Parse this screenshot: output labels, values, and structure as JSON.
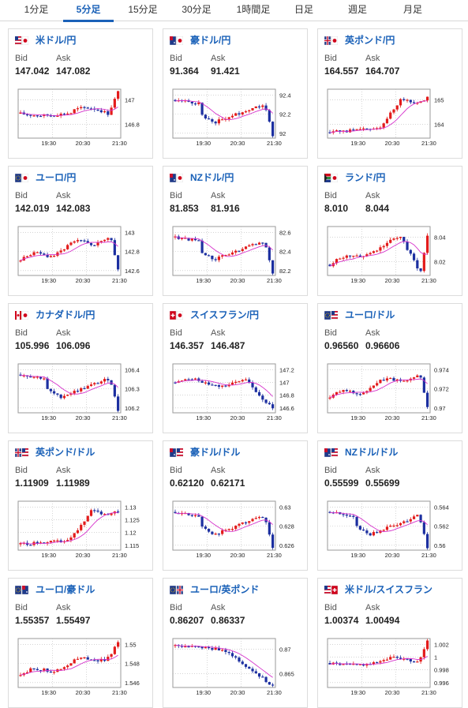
{
  "tabs": [
    {
      "label": "1分足",
      "active": false
    },
    {
      "label": "5分足",
      "active": true
    },
    {
      "label": "15分足",
      "active": false
    },
    {
      "label": "30分足",
      "active": false
    },
    {
      "label": "1時間足",
      "active": false
    },
    {
      "label": "日足",
      "active": false
    },
    {
      "label": "週足",
      "active": false
    },
    {
      "label": "月足",
      "active": false
    }
  ],
  "bid_label": "Bid",
  "ask_label": "Ask",
  "colors": {
    "accent": "#1a61b8",
    "up": "#e31b1b",
    "down": "#1c2fa0",
    "ma": "#d633cc"
  },
  "cards": [
    {
      "pair": "米ドル/円",
      "flag": "us-jp",
      "bid": "147.042",
      "ask": "147.082",
      "x_ticks": [
        "19:30",
        "20:30",
        "21:30"
      ],
      "y_ticks": [
        "147",
        "146.8"
      ],
      "trend": "flat-then-spike-up"
    },
    {
      "pair": "豪ドル/円",
      "flag": "au-jp",
      "bid": "91.364",
      "ask": "91.421",
      "x_ticks": [
        "19:30",
        "20:30",
        "21:30"
      ],
      "y_ticks": [
        "92.4",
        "92.2",
        "92"
      ],
      "trend": "dip-recover-drop"
    },
    {
      "pair": "英ポンド/円",
      "flag": "gb-jp",
      "bid": "164.557",
      "ask": "164.707",
      "x_ticks": [
        "19:30",
        "20:30",
        "21:30"
      ],
      "y_ticks": [
        "165",
        "164"
      ],
      "trend": "rising"
    },
    {
      "pair": "ユーロ/円",
      "flag": "eu-jp",
      "bid": "142.019",
      "ask": "142.083",
      "x_ticks": [
        "19:30",
        "20:30",
        "21:30"
      ],
      "y_ticks": [
        "143",
        "142.8",
        "142.6"
      ],
      "trend": "rise-then-drop"
    },
    {
      "pair": "NZドル/円",
      "flag": "nz-jp",
      "bid": "81.853",
      "ask": "81.916",
      "x_ticks": [
        "19:30",
        "20:30",
        "21:30"
      ],
      "y_ticks": [
        "82.6",
        "82.4",
        "82.2"
      ],
      "trend": "dip-recover-drop"
    },
    {
      "pair": "ランド/円",
      "flag": "za-jp",
      "bid": "8.010",
      "ask": "8.044",
      "x_ticks": [
        "19:30",
        "20:30",
        "21:30"
      ],
      "y_ticks": [
        "8.04",
        "8.02"
      ],
      "trend": "rise-dip-spike"
    },
    {
      "pair": "カナダドル/円",
      "flag": "ca-jp",
      "bid": "105.996",
      "ask": "106.096",
      "x_ticks": [
        "19:30",
        "20:30",
        "21:30"
      ],
      "y_ticks": [
        "106.4",
        "106.3",
        "106.2"
      ],
      "trend": "dip-recover-drop"
    },
    {
      "pair": "スイスフラン/円",
      "flag": "ch-jp",
      "bid": "146.357",
      "ask": "146.487",
      "x_ticks": [
        "19:30",
        "20:30",
        "21:30"
      ],
      "y_ticks": [
        "147.2",
        "147",
        "146.8",
        "146.6"
      ],
      "trend": "flat-then-drop"
    },
    {
      "pair": "ユーロ/ドル",
      "flag": "eu-us",
      "bid": "0.96560",
      "ask": "0.96606",
      "x_ticks": [
        "19:30",
        "20:30",
        "21:30"
      ],
      "y_ticks": [
        "0.974",
        "0.972",
        "0.97"
      ],
      "trend": "rise-then-drop"
    },
    {
      "pair": "英ポンド/ドル",
      "flag": "gb-us",
      "bid": "1.11909",
      "ask": "1.11989",
      "x_ticks": [
        "19:30",
        "20:30",
        "21:30"
      ],
      "y_ticks": [
        "1.13",
        "1.125",
        "1.12",
        "1.115"
      ],
      "trend": "rising"
    },
    {
      "pair": "豪ドル/ドル",
      "flag": "au-us",
      "bid": "0.62120",
      "ask": "0.62171",
      "x_ticks": [
        "19:30",
        "20:30",
        "21:30"
      ],
      "y_ticks": [
        "0.63",
        "0.628",
        "0.626"
      ],
      "trend": "dip-recover-drop"
    },
    {
      "pair": "NZドル/ドル",
      "flag": "nz-us",
      "bid": "0.55599",
      "ask": "0.55699",
      "x_ticks": [
        "19:30",
        "20:30",
        "21:30"
      ],
      "y_ticks": [
        "0.564",
        "0.562",
        "0.56"
      ],
      "trend": "dip-recover-drop"
    },
    {
      "pair": "ユーロ/豪ドル",
      "flag": "eu-au",
      "bid": "1.55357",
      "ask": "1.55497",
      "x_ticks": [
        "19:30",
        "20:30",
        "21:30"
      ],
      "y_ticks": [
        "1.55",
        "1.548",
        "1.546"
      ],
      "trend": "rise-then-spike"
    },
    {
      "pair": "ユーロ/英ポンド",
      "flag": "eu-gb",
      "bid": "0.86207",
      "ask": "0.86337",
      "x_ticks": [
        "19:30",
        "20:30",
        "21:30"
      ],
      "y_ticks": [
        "0.87",
        "0.865"
      ],
      "trend": "falling"
    },
    {
      "pair": "米ドル/スイスフラン",
      "flag": "us-ch",
      "bid": "1.00374",
      "ask": "1.00494",
      "x_ticks": [
        "19:30",
        "20:30",
        "21:30"
      ],
      "y_ticks": [
        "1.002",
        "1",
        "0.998",
        "0.996"
      ],
      "trend": "flat-then-spike-up"
    }
  ]
}
